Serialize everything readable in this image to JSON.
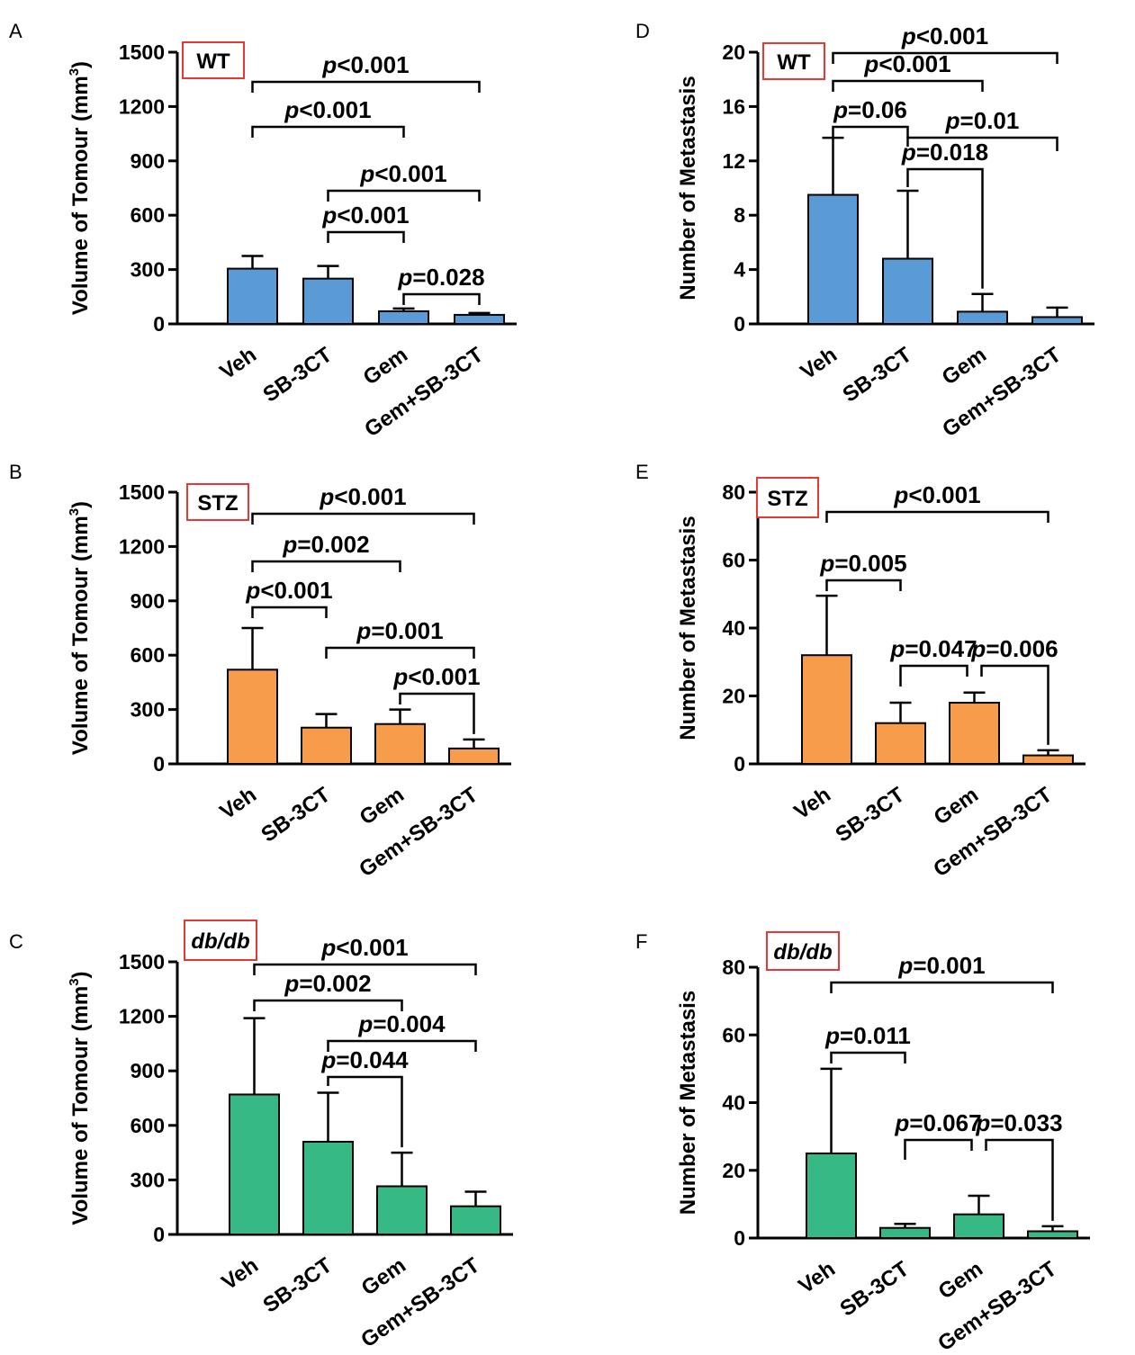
{
  "colors": {
    "wt": "#5B9BD5",
    "stz": "#F79C4B",
    "dbdb": "#36B985",
    "box_border": "#E53935",
    "ink": "#000000"
  },
  "chart_data": [
    {
      "panel": "A",
      "type": "bar",
      "group": "WT",
      "title": "",
      "ylabel": "Volume of Tomour (mm",
      "ylabel_sup": "3",
      "ylabel_close": ")",
      "categories": [
        "Veh",
        "SB-3CT",
        "Gem",
        "Gem+SB-3CT"
      ],
      "values": [
        305,
        250,
        70,
        50
      ],
      "errors": [
        70,
        70,
        15,
        10
      ],
      "ylim": [
        0,
        1500
      ],
      "yticks": [
        "0",
        "300",
        "600",
        "900",
        "1200",
        "1500"
      ],
      "comparisons": [
        {
          "from": 0,
          "to": 3,
          "p": "<0.001"
        },
        {
          "from": 0,
          "to": 2,
          "p": "<0.001"
        },
        {
          "from": 1,
          "to": 3,
          "p": "<0.001"
        },
        {
          "from": 1,
          "to": 2,
          "p": "<0.001"
        },
        {
          "from": 2,
          "to": 3,
          "p": "=0.028"
        }
      ]
    },
    {
      "panel": "B",
      "type": "bar",
      "group": "STZ",
      "title": "",
      "ylabel": "Volume of Tomour (mm",
      "ylabel_sup": "3",
      "ylabel_close": ")",
      "categories": [
        "Veh",
        "SB-3CT",
        "Gem",
        "Gem+SB-3CT"
      ],
      "values": [
        520,
        200,
        220,
        85
      ],
      "errors": [
        230,
        75,
        80,
        50
      ],
      "ylim": [
        0,
        1500
      ],
      "yticks": [
        "0",
        "300",
        "600",
        "900",
        "1200",
        "1500"
      ],
      "comparisons": [
        {
          "from": 0,
          "to": 3,
          "p": "<0.001"
        },
        {
          "from": 0,
          "to": 2,
          "p": "=0.002"
        },
        {
          "from": 0,
          "to": 1,
          "p": "<0.001"
        },
        {
          "from": 1,
          "to": 3,
          "p": "=0.001"
        },
        {
          "from": 2,
          "to": 3,
          "p": "<0.001"
        }
      ]
    },
    {
      "panel": "C",
      "type": "bar",
      "group": "db/db",
      "title": "",
      "ylabel": "Volume of Tomour (mm",
      "ylabel_sup": "3",
      "ylabel_close": ")",
      "categories": [
        "Veh",
        "SB-3CT",
        "Gem",
        "Gem+SB-3CT"
      ],
      "values": [
        770,
        510,
        265,
        155
      ],
      "errors": [
        420,
        270,
        185,
        80
      ],
      "ylim": [
        0,
        1500
      ],
      "yticks": [
        "0",
        "300",
        "600",
        "900",
        "1200",
        "1500"
      ],
      "comparisons": [
        {
          "from": 0,
          "to": 3,
          "p": "<0.001"
        },
        {
          "from": 0,
          "to": 2,
          "p": "=0.002"
        },
        {
          "from": 1,
          "to": 3,
          "p": "=0.004"
        },
        {
          "from": 1,
          "to": 2,
          "p": "=0.044"
        }
      ]
    },
    {
      "panel": "D",
      "type": "bar",
      "group": "WT",
      "title": "",
      "ylabel": "Number of Metastasis",
      "ylabel_sup": "",
      "ylabel_close": "",
      "categories": [
        "Veh",
        "SB-3CT",
        "Gem",
        "Gem+SB-3CT"
      ],
      "values": [
        9.5,
        4.8,
        0.9,
        0.5
      ],
      "errors": [
        4.2,
        5.0,
        1.3,
        0.7
      ],
      "ylim": [
        0,
        20
      ],
      "yticks": [
        "0",
        "4",
        "8",
        "12",
        "16",
        "20"
      ],
      "comparisons": [
        {
          "from": 0,
          "to": 3,
          "p": "<0.001"
        },
        {
          "from": 0,
          "to": 2,
          "p": "<0.001"
        },
        {
          "from": 0,
          "to": 1,
          "p": "=0.06"
        },
        {
          "from": 1,
          "to": 3,
          "p": "=0.01"
        },
        {
          "from": 1,
          "to": 2,
          "p": "=0.018"
        }
      ]
    },
    {
      "panel": "E",
      "type": "bar",
      "group": "STZ",
      "title": "",
      "ylabel": "Number of Metastasis",
      "ylabel_sup": "",
      "ylabel_close": "",
      "categories": [
        "Veh",
        "SB-3CT",
        "Gem",
        "Gem+SB-3CT"
      ],
      "values": [
        32,
        12,
        18,
        2.5
      ],
      "errors": [
        17.5,
        6,
        3,
        1.5
      ],
      "ylim": [
        0,
        80
      ],
      "yticks": [
        "0",
        "20",
        "40",
        "60",
        "80"
      ],
      "comparisons": [
        {
          "from": 0,
          "to": 3,
          "p": "<0.001"
        },
        {
          "from": 0,
          "to": 1,
          "p": "=0.005"
        },
        {
          "from": 1,
          "to": 2,
          "p": "=0.047"
        },
        {
          "from": 2,
          "to": 3,
          "p": "=0.006"
        }
      ]
    },
    {
      "panel": "F",
      "type": "bar",
      "group": "db/db",
      "title": "",
      "ylabel": "Number of Metastasis",
      "ylabel_sup": "",
      "ylabel_close": "",
      "categories": [
        "Veh",
        "SB-3CT",
        "Gem",
        "Gem+SB-3CT"
      ],
      "values": [
        25,
        3,
        7,
        2
      ],
      "errors": [
        25,
        1.2,
        5.5,
        1.5
      ],
      "ylim": [
        0,
        80
      ],
      "yticks": [
        "0",
        "20",
        "40",
        "60",
        "80"
      ],
      "comparisons": [
        {
          "from": 0,
          "to": 3,
          "p": "=0.001"
        },
        {
          "from": 0,
          "to": 1,
          "p": "=0.011"
        },
        {
          "from": 1,
          "to": 2,
          "p": "=0.067"
        },
        {
          "from": 2,
          "to": 3,
          "p": "=0.033"
        }
      ]
    }
  ]
}
